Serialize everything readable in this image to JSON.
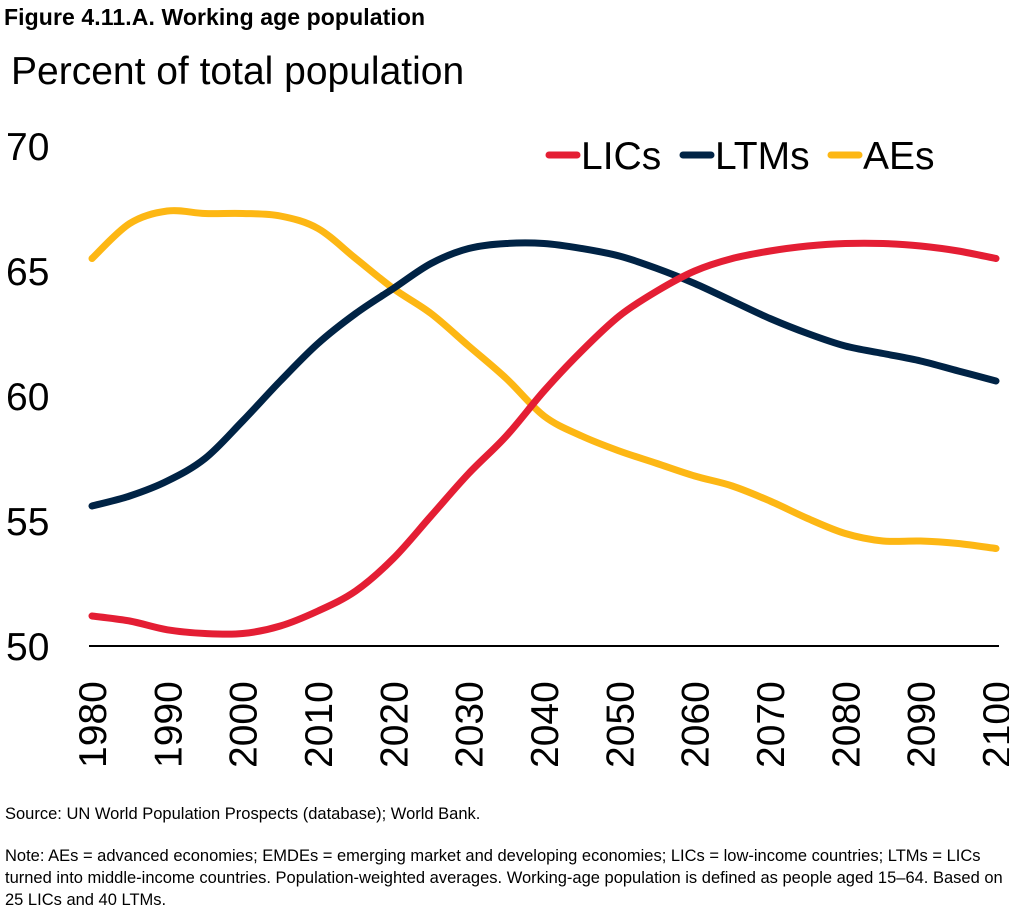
{
  "figure": {
    "title": "Figure 4.11.A. Working age population",
    "unit_label": "Percent of total population",
    "source": "Source: UN World Population Prospects (database); World Bank.",
    "note": "Note: AEs = advanced economies; EMDEs = emerging market and developing economies; LICs = low-income countries; LTMs = LICs turned into middle-income countries. Population-weighted averages. Working-age population is defined as people aged 15–64.  Based on 25 LICs and 40 LTMs."
  },
  "chart_data": {
    "type": "line",
    "title": "Working age population",
    "xlabel": "",
    "ylabel": "Percent of total population",
    "xlim": [
      1980,
      2100
    ],
    "ylim": [
      50,
      70
    ],
    "grid": false,
    "legend_position": "top-right",
    "x_ticks": [
      "1980",
      "1990",
      "2000",
      "2010",
      "2020",
      "2030",
      "2040",
      "2050",
      "2060",
      "2070",
      "2080",
      "2090",
      "2100"
    ],
    "y_ticks": [
      "50",
      "55",
      "60",
      "65",
      "70"
    ],
    "x": [
      1980,
      1985,
      1990,
      1995,
      2000,
      2005,
      2010,
      2015,
      2020,
      2025,
      2030,
      2035,
      2040,
      2045,
      2050,
      2055,
      2060,
      2065,
      2070,
      2075,
      2080,
      2085,
      2090,
      2095,
      2100
    ],
    "series": [
      {
        "name": "LICs",
        "color": "#e41e34",
        "values": [
          51.2,
          51.0,
          50.65,
          50.5,
          50.5,
          50.8,
          51.4,
          52.2,
          53.5,
          55.2,
          56.9,
          58.4,
          60.2,
          61.8,
          63.2,
          64.2,
          65.0,
          65.5,
          65.8,
          66.0,
          66.1,
          66.1,
          66.0,
          65.8,
          65.5
        ]
      },
      {
        "name": "LTMs",
        "color": "#002345",
        "values": [
          55.6,
          56.0,
          56.6,
          57.5,
          59.0,
          60.6,
          62.1,
          63.3,
          64.3,
          65.3,
          65.9,
          66.1,
          66.1,
          65.9,
          65.6,
          65.1,
          64.5,
          63.8,
          63.1,
          62.5,
          62.0,
          61.7,
          61.4,
          61.0,
          60.6
        ]
      },
      {
        "name": "AEs",
        "color": "#fdb714",
        "values": [
          65.5,
          66.9,
          67.4,
          67.3,
          67.3,
          67.2,
          66.7,
          65.5,
          64.3,
          63.3,
          62.0,
          60.7,
          59.2,
          58.4,
          57.8,
          57.3,
          56.8,
          56.4,
          55.8,
          55.1,
          54.5,
          54.2,
          54.2,
          54.1,
          53.9
        ]
      }
    ]
  }
}
